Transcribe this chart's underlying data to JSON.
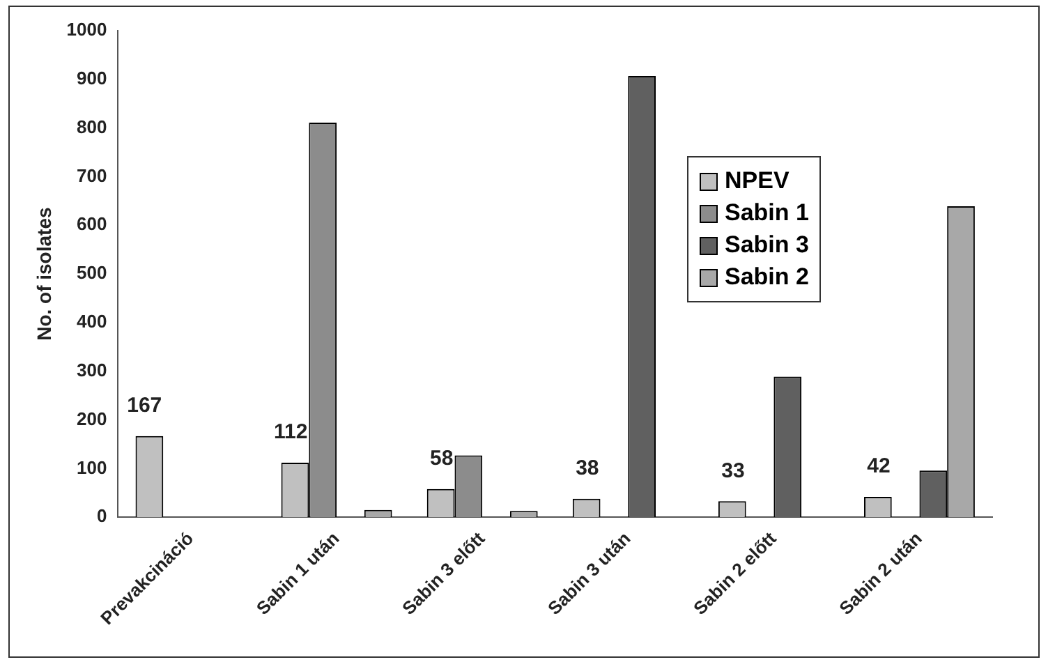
{
  "chart_data": {
    "type": "bar",
    "ylabel": "No. of isolates",
    "categories": [
      "Prevakcináció",
      "Sabin 1 után",
      "Sabin 3 előtt",
      "Sabin 3 után",
      "Sabin 2 előtt",
      "Sabin 2 után"
    ],
    "series": [
      {
        "name": "NPEV",
        "color": "#c0c0c0",
        "values": [
          167,
          112,
          58,
          38,
          33,
          42
        ],
        "value_labels": [
          "167",
          "112",
          "58",
          "38",
          "33",
          "42"
        ]
      },
      {
        "name": "Sabin 1",
        "color": "#8c8c8c",
        "values": [
          null,
          811,
          127,
          null,
          null,
          null
        ]
      },
      {
        "name": "Sabin 3",
        "color": "#606060",
        "values": [
          null,
          null,
          null,
          907,
          289,
          96
        ]
      },
      {
        "name": "Sabin 2",
        "color": "#a8a8a8",
        "values": [
          null,
          15,
          13,
          null,
          null,
          639
        ]
      }
    ],
    "ylim": [
      0,
      1000
    ],
    "yticks": [
      0,
      100,
      200,
      300,
      400,
      500,
      600,
      700,
      800,
      900,
      1000
    ],
    "grid": false,
    "legend": "right"
  }
}
